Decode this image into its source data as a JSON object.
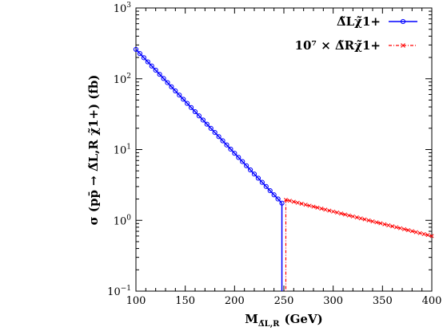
{
  "chart_data": {
    "type": "line",
    "title": "",
    "xlabel": "M_{Δ̃_{L,R}} (GeV)",
    "xlabel_main": "M",
    "xlabel_sub": "Δ̃L,R",
    "xlabel_unit": "(GeV)",
    "ylabel": "σ (pp̄ → Δ̃L,R χ̃1+) (fb)",
    "yscale": "log",
    "xlim": [
      100,
      400
    ],
    "ylim": [
      0.1,
      1000
    ],
    "x_ticks": [
      100,
      150,
      200,
      250,
      300,
      350,
      400
    ],
    "x_tick_labels": [
      "100",
      "150",
      "200",
      "250",
      "300",
      "350",
      "400"
    ],
    "y_ticks": [
      0.1,
      1,
      10,
      100,
      1000
    ],
    "y_tick_labels": [
      {
        "base": "10",
        "exp": "−1"
      },
      {
        "base": "10",
        "exp": "0"
      },
      {
        "base": "10",
        "exp": "1"
      },
      {
        "base": "10",
        "exp": "2"
      },
      {
        "base": "10",
        "exp": "3"
      }
    ],
    "grid": false,
    "legend_position": "top-right",
    "series": [
      {
        "name": "Δ̃L χ̃1+",
        "color": "#0000ff",
        "marker": "circle",
        "x_start": 100,
        "x_end": 248,
        "x_step": 4,
        "y_start": 260,
        "y_end": 1.75,
        "drop_x": 248
      },
      {
        "name": "10^7 × Δ̃R χ̃1+",
        "color": "#ff0000",
        "marker": "x",
        "x_start": 252,
        "x_end": 400,
        "x_step": 4,
        "y_start": 1.95,
        "y_end": 0.6,
        "drop_x": 252
      }
    ],
    "legend": [
      {
        "label": "Δ̃Lχ̃1+"
      },
      {
        "label": "10⁷ × Δ̃Rχ̃1+"
      }
    ]
  }
}
